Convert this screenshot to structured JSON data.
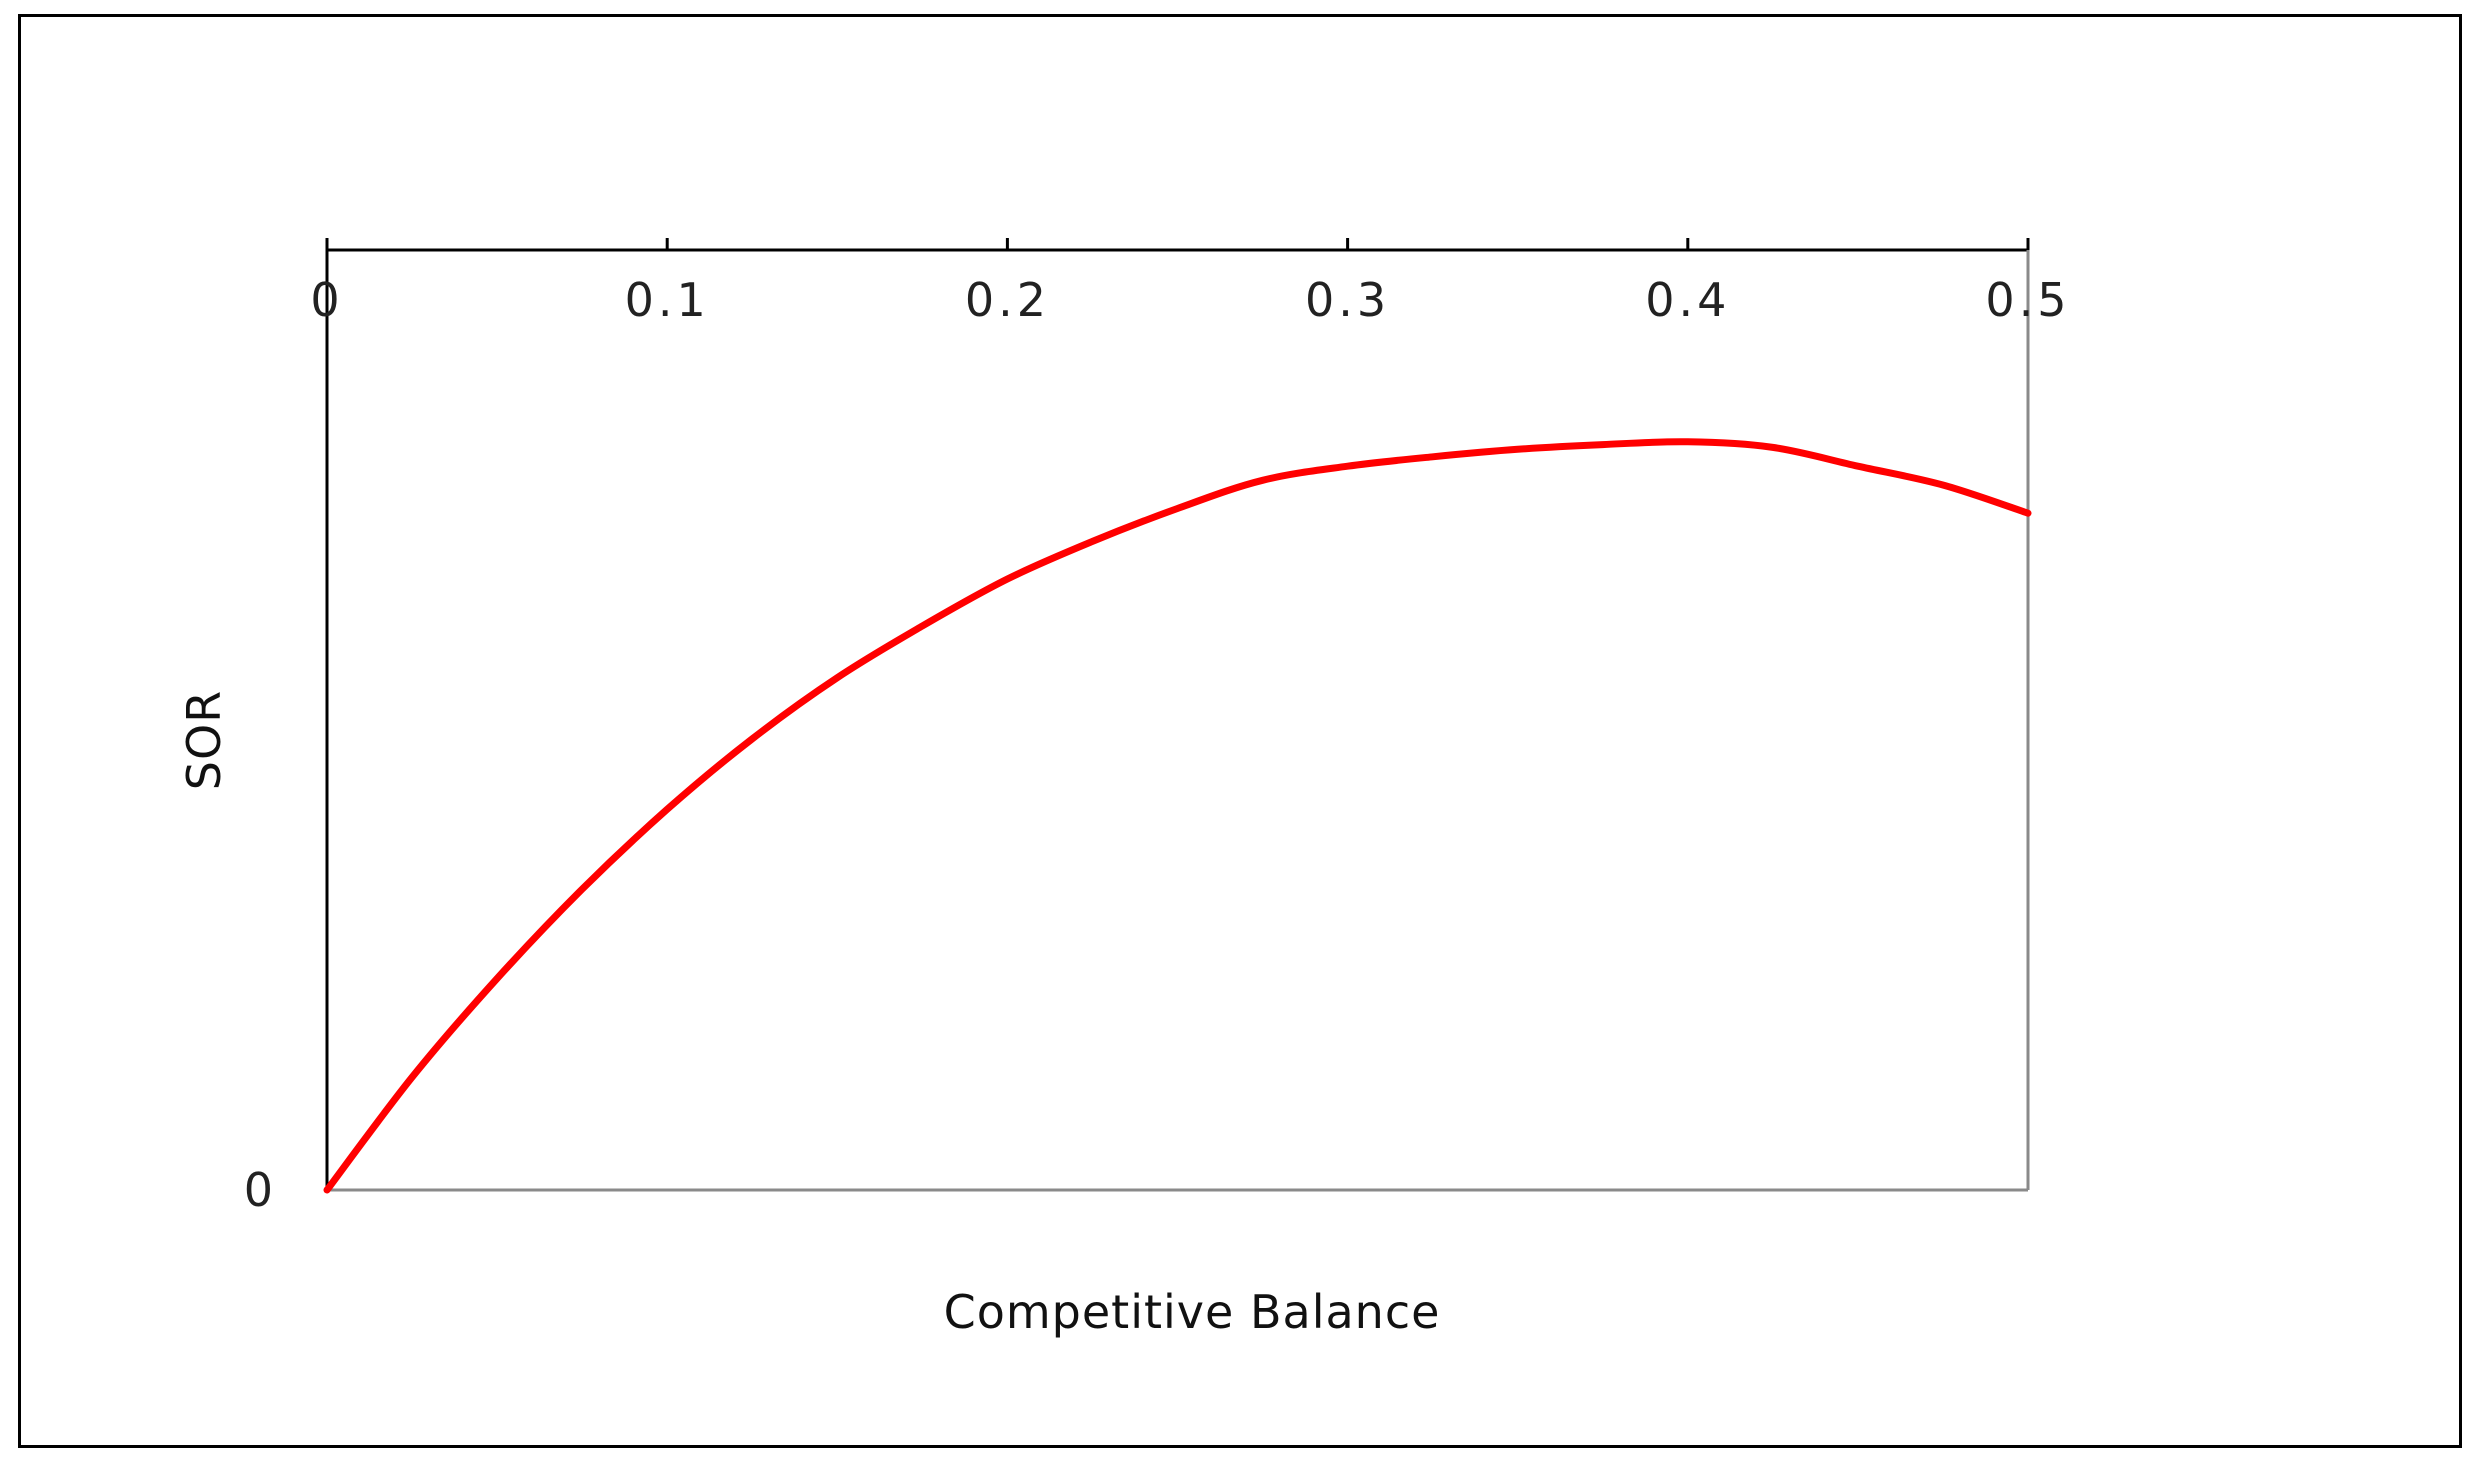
{
  "chart_data": {
    "type": "line",
    "xlabel": "Competitive Balance",
    "ylabel": "SOR",
    "xlim": [
      0,
      0.5
    ],
    "ylim": [
      0,
      1.0
    ],
    "x_axis_position": "top",
    "x_ticks": [
      0,
      0.1,
      0.2,
      0.3,
      0.4,
      0.5
    ],
    "x_tick_labels": [
      "0",
      "0.1",
      "0.2",
      "0.3",
      "0.4",
      "0.5"
    ],
    "y_tick_labels": [
      "0"
    ],
    "grid": false,
    "series": [
      {
        "color": "#ff0000",
        "x": [
          0,
          0.025,
          0.05,
          0.075,
          0.1,
          0.125,
          0.15,
          0.175,
          0.2,
          0.225,
          0.25,
          0.275,
          0.3,
          0.325,
          0.35,
          0.375,
          0.4,
          0.425,
          0.45,
          0.475,
          0.5
        ],
        "y": [
          0,
          0.12,
          0.225,
          0.32,
          0.405,
          0.48,
          0.545,
          0.6,
          0.65,
          0.69,
          0.725,
          0.755,
          0.77,
          0.78,
          0.788,
          0.793,
          0.796,
          0.79,
          0.77,
          0.75,
          0.72
        ]
      }
    ]
  }
}
